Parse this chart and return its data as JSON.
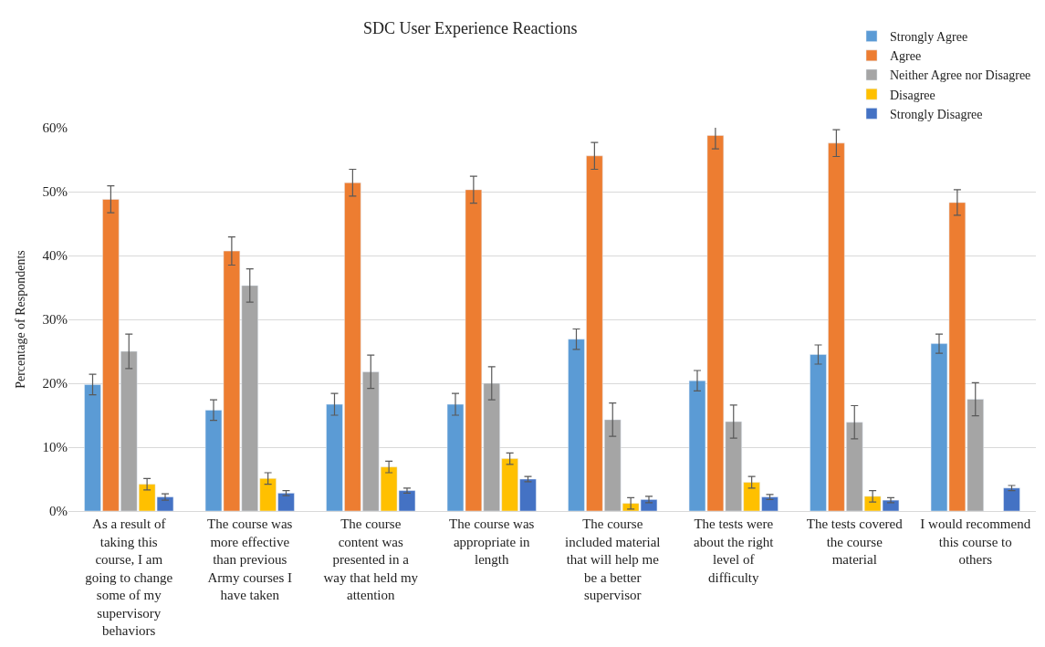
{
  "chart_data": {
    "type": "bar",
    "title": "SDC User Experience Reactions",
    "ylabel": "Percentage of Respondents",
    "categories": [
      "As a result of taking this course, I am going to change some of my supervisory behaviors",
      "The course was more effective than previous Army courses I have taken",
      "The course content was presented in a way that held my attention",
      "The course was appropriate in length",
      "The course included material that will help me be a better supervisor",
      "The tests were about the right level of difficulty",
      "The tests covered the course material",
      "I would recommend this course to others"
    ],
    "series": [
      {
        "name": "Strongly Agree",
        "color": "#5b9bd5",
        "values": [
          19.8,
          15.8,
          16.7,
          16.7,
          26.9,
          20.4,
          24.5,
          26.2
        ],
        "errors": [
          1.6,
          1.6,
          1.7,
          1.7,
          1.6,
          1.6,
          1.5,
          1.5
        ]
      },
      {
        "name": "Agree",
        "color": "#ed7d31",
        "values": [
          48.8,
          40.7,
          51.4,
          50.3,
          55.6,
          58.8,
          57.6,
          48.3
        ],
        "errors": [
          2.1,
          2.2,
          2.1,
          2.1,
          2.1,
          2.1,
          2.1,
          2.0
        ]
      },
      {
        "name": "Neither Agree nor Disagree",
        "color": "#a5a5a5",
        "values": [
          25.0,
          35.3,
          21.8,
          20.0,
          14.3,
          14.0,
          13.9,
          17.5
        ],
        "errors": [
          2.7,
          2.6,
          2.6,
          2.6,
          2.6,
          2.6,
          2.6,
          2.6
        ]
      },
      {
        "name": "Disagree",
        "color": "#ffc000",
        "values": [
          4.2,
          5.1,
          6.9,
          8.2,
          1.2,
          4.5,
          2.3,
          null
        ],
        "errors": [
          0.9,
          0.9,
          0.9,
          0.9,
          0.9,
          0.9,
          0.9,
          null
        ]
      },
      {
        "name": "Strongly Disagree",
        "color": "#4472c4",
        "values": [
          2.2,
          2.8,
          3.2,
          5.0,
          1.8,
          2.2,
          1.7,
          3.6
        ],
        "errors": [
          0.5,
          0.4,
          0.4,
          0.4,
          0.5,
          0.4,
          0.4,
          0.4
        ]
      }
    ],
    "ylim": [
      0,
      60
    ],
    "yticks": [
      {
        "value": 0,
        "label": "0%"
      },
      {
        "value": 10,
        "label": "10%"
      },
      {
        "value": 20,
        "label": "20%"
      },
      {
        "value": 30,
        "label": "30%"
      },
      {
        "value": 40,
        "label": "40%"
      },
      {
        "value": 50,
        "label": "50%"
      },
      {
        "value": 60,
        "label": "60%"
      }
    ],
    "grid": "y",
    "legend": "top right"
  }
}
